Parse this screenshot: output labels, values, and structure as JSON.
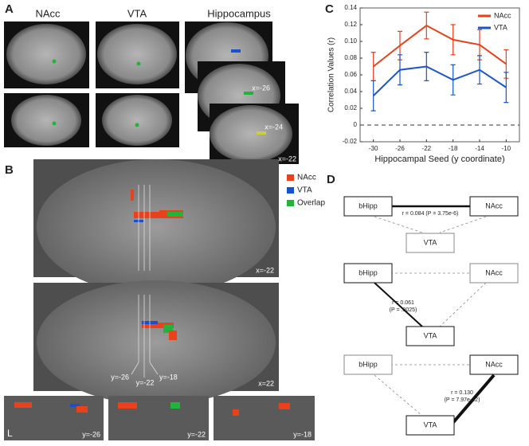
{
  "panel_a": {
    "label": "A",
    "titles": [
      "NAcc",
      "VTA",
      "Hippocampus"
    ],
    "slice_labels": [
      "x=-26",
      "x=-24",
      "x=-22"
    ]
  },
  "panel_b": {
    "label": "B",
    "legend": [
      {
        "name": "NAcc",
        "color": "#e8411c"
      },
      {
        "name": "VTA",
        "color": "#1a50d0"
      },
      {
        "name": "Overlap",
        "color": "#22b33a"
      }
    ],
    "slice_labels": [
      "x=-22",
      "x=22"
    ],
    "y_labels": [
      "y=-26",
      "y=-22",
      "y=-18"
    ],
    "coronal_labels": [
      "y=-26",
      "y=-22",
      "y=-18"
    ],
    "side_label": "L"
  },
  "chart_data": {
    "type": "line",
    "label": "C",
    "ylabel": "Correlation Values (r)",
    "xlabel": "Hippocampal Seed (y coordinate)",
    "categories": [
      "-30",
      "-26",
      "-22",
      "-18",
      "-14",
      "-10"
    ],
    "series": [
      {
        "name": "NAcc",
        "color": "#e8411c",
        "values": [
          0.07,
          0.095,
          0.119,
          0.102,
          0.096,
          0.073
        ],
        "errors": [
          0.017,
          0.017,
          0.016,
          0.018,
          0.018,
          0.017
        ]
      },
      {
        "name": "VTA",
        "color": "#1a56c8",
        "values": [
          0.035,
          0.066,
          0.07,
          0.054,
          0.066,
          0.045
        ],
        "errors": [
          0.018,
          0.018,
          0.017,
          0.018,
          0.017,
          0.018
        ]
      }
    ],
    "ylim": [
      -0.02,
      0.14
    ],
    "yticks": [
      -0.02,
      0,
      0.02,
      0.04,
      0.06,
      0.08,
      {
        "value": 0.1,
        "label": "0.10"
      },
      0.12,
      0.14
    ],
    "hline": 0,
    "legend": "top-right"
  },
  "panel_d": {
    "label": "D",
    "diagrams": [
      {
        "nodes": [
          "bHipp",
          "NAcc",
          "VTA"
        ],
        "stat": [
          "r = 0.084 (P = 3.75e-6)"
        ]
      },
      {
        "nodes": [
          "bHipp",
          "NAcc",
          "VTA"
        ],
        "stat": [
          "r = 0.061",
          "(P = .0025)"
        ]
      },
      {
        "nodes": [
          "bHipp",
          "NAcc",
          "VTA"
        ],
        "stat": [
          "r = 0.130",
          "(P = 7.97e-12)"
        ]
      }
    ]
  }
}
